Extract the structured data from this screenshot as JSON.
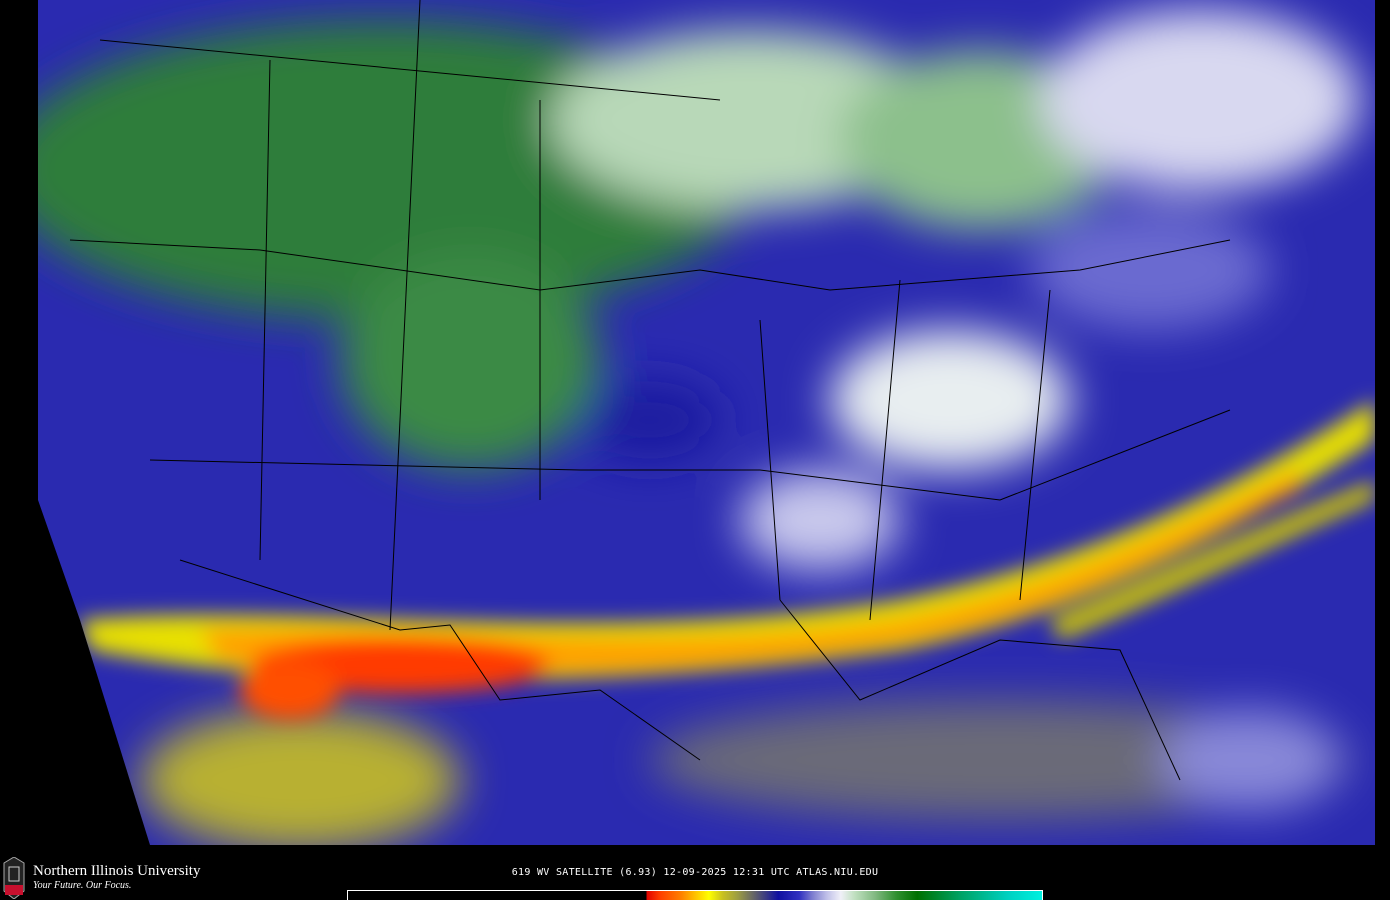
{
  "map": {
    "product": "water vapor satellite",
    "colors": {
      "background": "#000000",
      "moist": "#1a1aa8",
      "dry_warm": "#ff3000",
      "band_yellow": "#f0e800",
      "cold_green": "#1e7a32",
      "white": "#f0f0f8"
    }
  },
  "footer": {
    "logo_text": "NIU",
    "university": "Northern Illinois University",
    "tagline": "Your Future. Our Focus.",
    "caption": "619 WV SATELLITE (6.93) 12-09-2025 12:31 UTC  ATLAS.NIU.EDU"
  },
  "colorbar": {
    "stops": [
      "#000000",
      "#e00000",
      "#ff8000",
      "#ffff00",
      "#a0a040",
      "#707060",
      "#1010a0",
      "#8080d0",
      "#f0f0f8",
      "#80b880",
      "#007000",
      "#00f0e0"
    ]
  }
}
